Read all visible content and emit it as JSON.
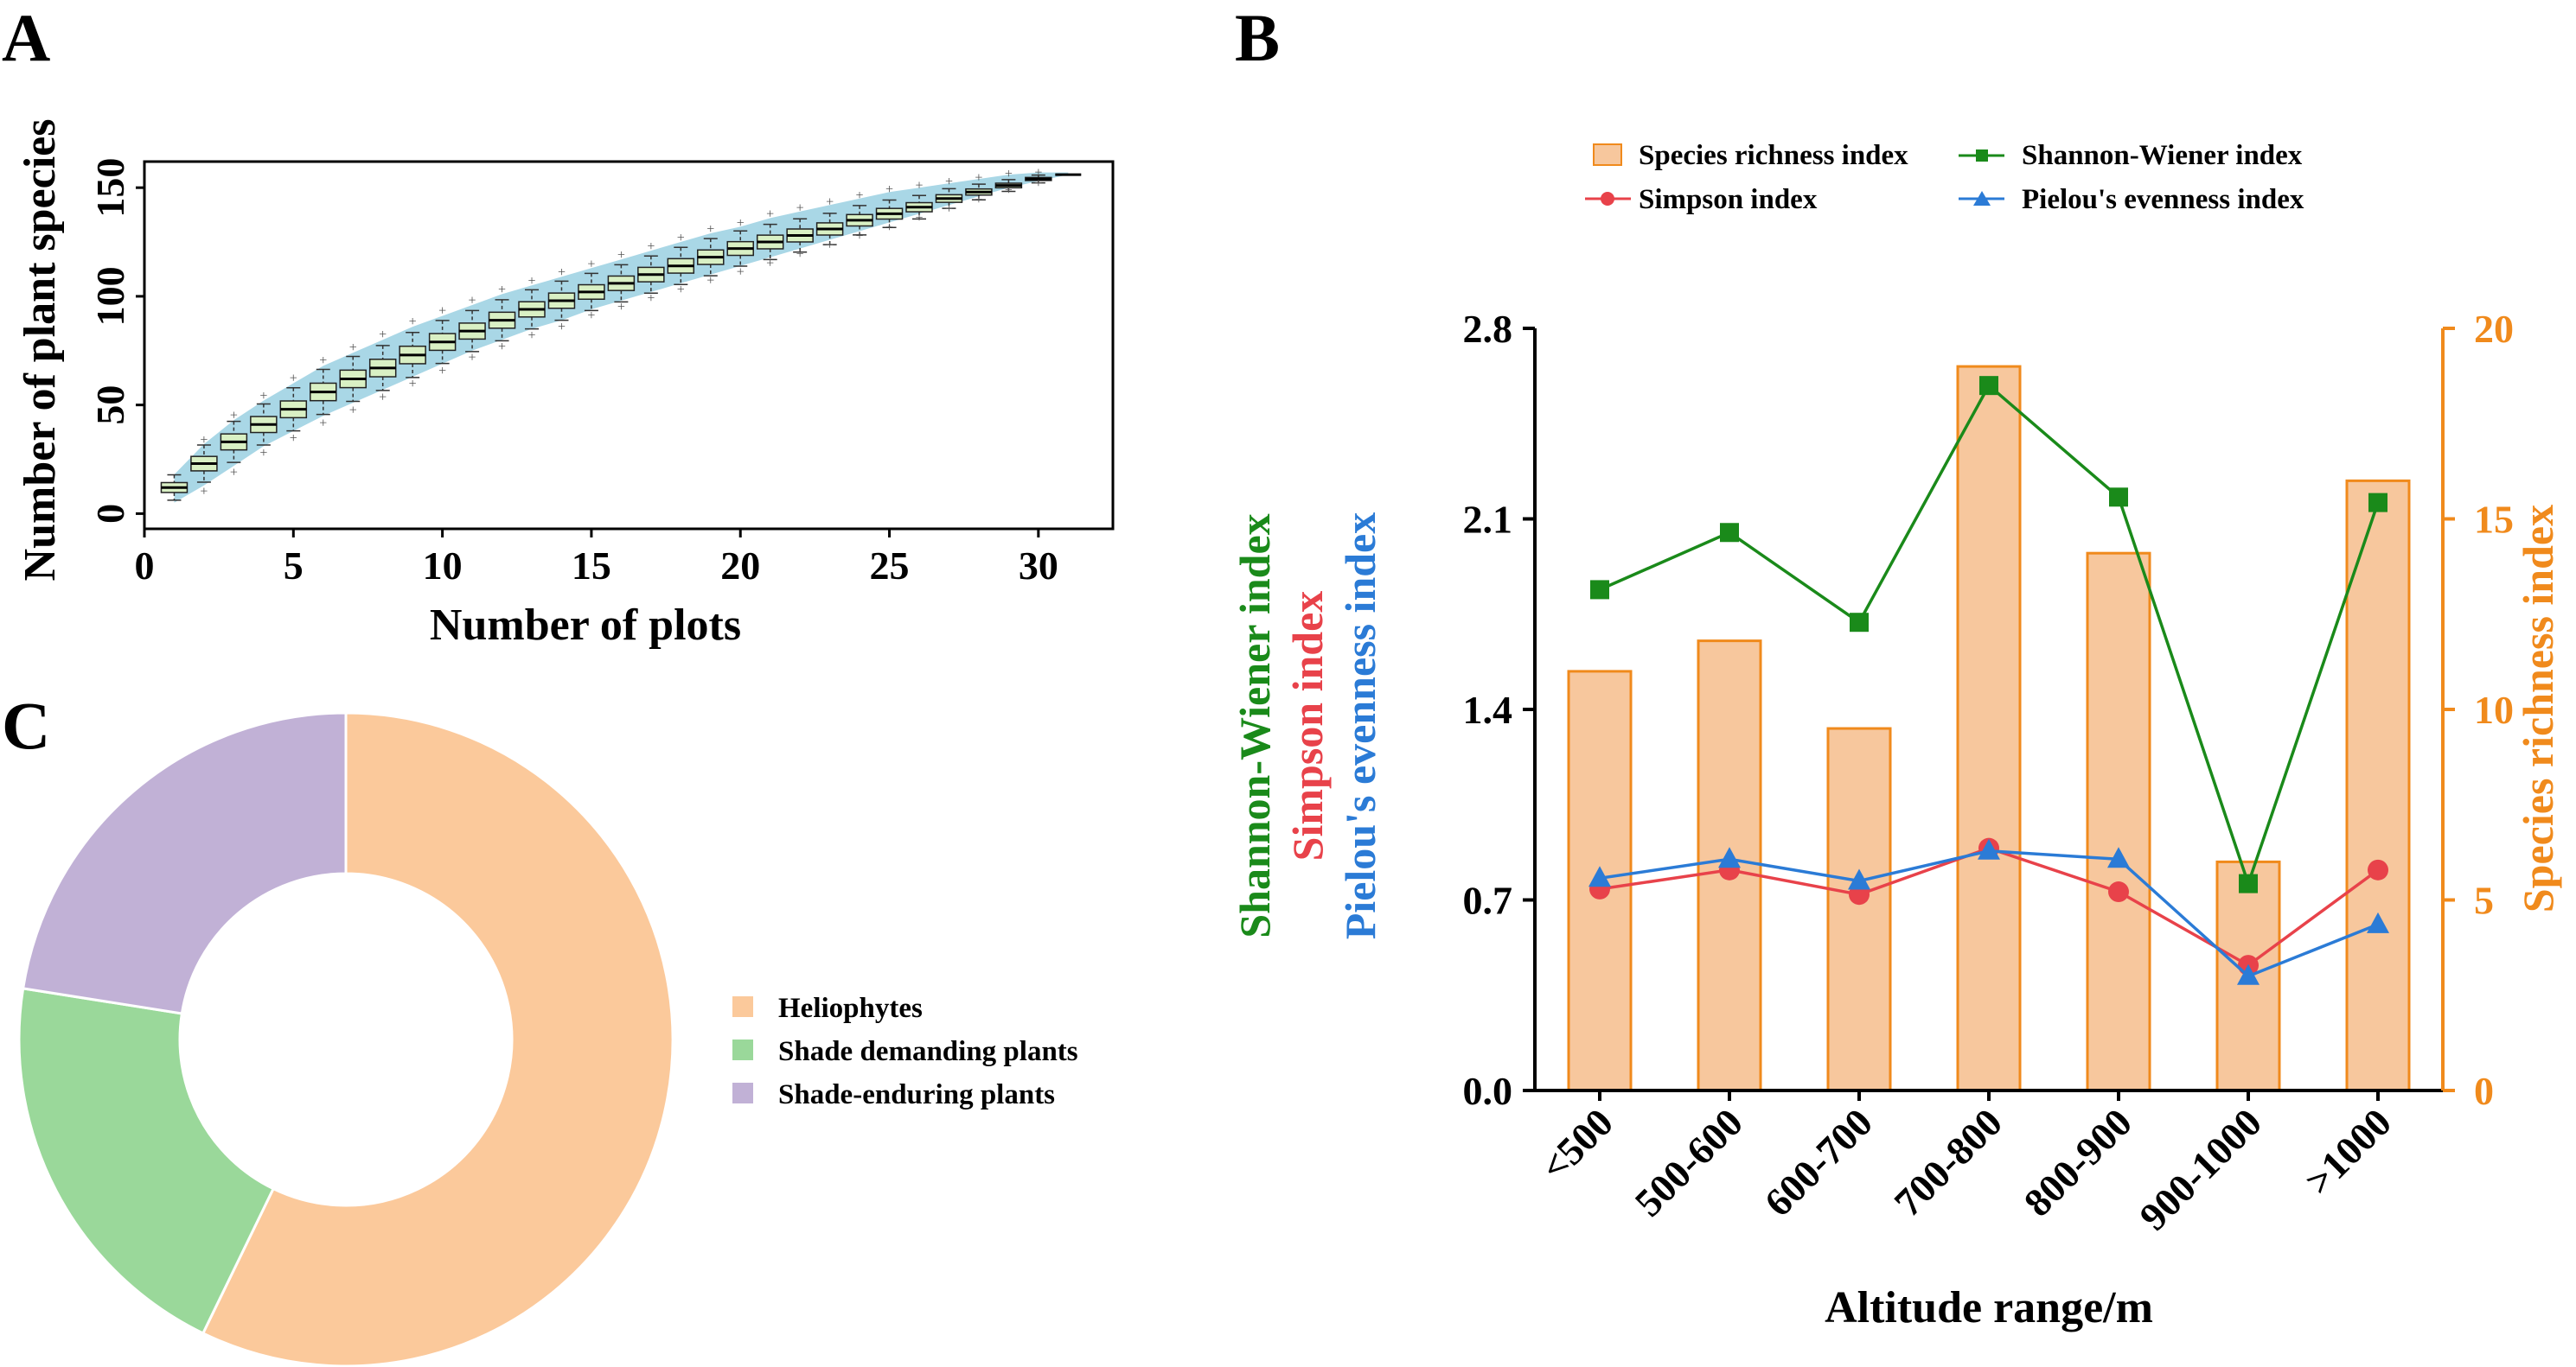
{
  "panels": {
    "a": "A",
    "b": "B",
    "c": "C"
  },
  "chart_data": [
    {
      "type": "boxplot",
      "panel": "A",
      "xlabel": "Number of plots",
      "ylabel": "Number of plant species",
      "xlim": [
        0,
        32.5
      ],
      "ylim": [
        -7,
        162
      ],
      "xticks": [
        0,
        5,
        10,
        15,
        20,
        25,
        30
      ],
      "yticks": [
        0,
        50,
        100,
        150
      ],
      "grid": false,
      "colors": {
        "box": "#d9f0c4",
        "band": "#a9d7e6",
        "median": "#000000"
      },
      "x": [
        1,
        2,
        3,
        4,
        5,
        6,
        7,
        8,
        9,
        10,
        11,
        12,
        13,
        14,
        15,
        16,
        17,
        18,
        19,
        20,
        21,
        22,
        23,
        24,
        25,
        26,
        27,
        28,
        29,
        30,
        31
      ],
      "median": [
        12,
        23,
        33,
        41,
        48,
        56,
        62,
        67,
        73,
        79,
        84,
        89,
        94,
        98,
        102,
        106,
        110,
        114,
        118,
        122,
        125,
        128,
        131,
        135,
        138,
        141,
        145,
        148,
        151,
        154,
        156
      ],
      "band_lower": [
        5,
        13,
        22,
        31,
        38,
        45,
        51,
        57,
        63,
        69,
        75,
        80,
        85,
        89,
        94,
        98,
        102,
        106,
        110,
        114,
        118,
        122,
        126,
        130,
        134,
        138,
        142,
        146,
        150,
        153,
        156
      ],
      "band_upper": [
        18,
        32,
        43,
        52,
        60,
        68,
        74,
        80,
        86,
        91,
        96,
        101,
        105,
        109,
        113,
        117,
        121,
        125,
        129,
        132,
        136,
        139,
        142,
        145,
        148,
        150,
        152,
        154,
        156,
        157,
        157
      ]
    },
    {
      "type": "bar-line",
      "panel": "B",
      "xlabel": "Altitude range/m",
      "ylabel_left": [
        "Shannon-Wiener index",
        "Simpson index",
        "Pielou's evenness index"
      ],
      "ylabel_right": "Species richness index",
      "categories": [
        "<500",
        "500-600",
        "600-700",
        "700-800",
        "800-900",
        "900-1000",
        ">1000"
      ],
      "ylim_left": [
        0,
        2.8
      ],
      "yticks_left": [
        "0.0",
        "0.7",
        "1.4",
        "2.1",
        "2.8"
      ],
      "ylim_right": [
        0,
        20
      ],
      "yticks_right": [
        "0",
        "5",
        "10",
        "15",
        "20"
      ],
      "legend_position": "top",
      "series": [
        {
          "name": "Species richness index",
          "kind": "bar",
          "axis": "right",
          "color": "#f7c79d",
          "edge": "#f08a1c",
          "values": [
            11,
            11.8,
            9.5,
            19,
            14.1,
            6,
            16
          ]
        },
        {
          "name": "Shannon-Wiener index",
          "kind": "line",
          "marker": "square",
          "axis": "left",
          "color": "#1a8a1a",
          "values": [
            1.84,
            2.05,
            1.72,
            2.59,
            2.18,
            0.76,
            2.16
          ]
        },
        {
          "name": "Simpson index",
          "kind": "line",
          "marker": "circle",
          "axis": "left",
          "color": "#e8424a",
          "values": [
            0.74,
            0.81,
            0.72,
            0.89,
            0.73,
            0.46,
            0.81
          ]
        },
        {
          "name": "Pielou's evenness index",
          "kind": "line",
          "marker": "triangle",
          "axis": "left",
          "color": "#2b7bd6",
          "values": [
            0.78,
            0.85,
            0.77,
            0.88,
            0.85,
            0.42,
            0.61
          ]
        }
      ]
    },
    {
      "type": "pie",
      "panel": "C",
      "donut": true,
      "legend_position": "right",
      "labels": [
        "Heliophytes",
        "Shade demanding plants",
        "Shade-enduring plants"
      ],
      "values": [
        57.2,
        20.3,
        22.5
      ],
      "colors": [
        "#fbc99b",
        "#9ad89a",
        "#c1b1d6"
      ]
    }
  ]
}
